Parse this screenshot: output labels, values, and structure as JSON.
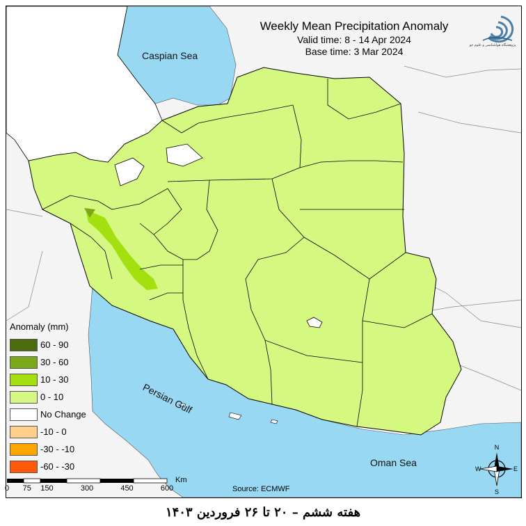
{
  "map": {
    "title": "Weekly Mean Precipitation Anomaly",
    "valid_time": "Valid time: 8 - 14 Apr 2024",
    "base_time": "Base time: 3 Mar 2024",
    "source": "Source: ECMWF",
    "labels": {
      "caspian": "Caspian Sea",
      "gulf": "Persian Gulf",
      "oman": "Oman Sea"
    },
    "colors": {
      "sea": "#99d8f2",
      "background": "#f4f4f4",
      "land_no_change": "#ffffff",
      "border": "#000000"
    }
  },
  "legend": {
    "title": "Anomaly (mm)",
    "items": [
      {
        "label": "60 - 90",
        "color": "#4a6b0e"
      },
      {
        "label": "30 - 60",
        "color": "#7aa81b"
      },
      {
        "label": "10 - 30",
        "color": "#a4e010"
      },
      {
        "label": "0 - 10",
        "color": "#d4f880"
      },
      {
        "label": "No Change",
        "color": "#ffffff"
      },
      {
        "label": "-10 - 0",
        "color": "#ffd08a"
      },
      {
        "label": "-30 - -10",
        "color": "#ffa500"
      },
      {
        "label": "-60 - -30",
        "color": "#ff5a0a"
      }
    ]
  },
  "scale": {
    "unit": "Km",
    "ticks": [
      "0",
      "75",
      "150",
      "300",
      "450",
      "600"
    ]
  },
  "compass": {
    "n": "N",
    "s": "S",
    "e": "E",
    "w": "W"
  },
  "logo": {
    "icon": "organization-logo-icon",
    "text": "پژوهشگاه هواشناسی و علوم جو"
  },
  "footer": {
    "text": "هفته ششم – ۲۰ تا ۲۶ فروردین ۱۴۰۳"
  }
}
